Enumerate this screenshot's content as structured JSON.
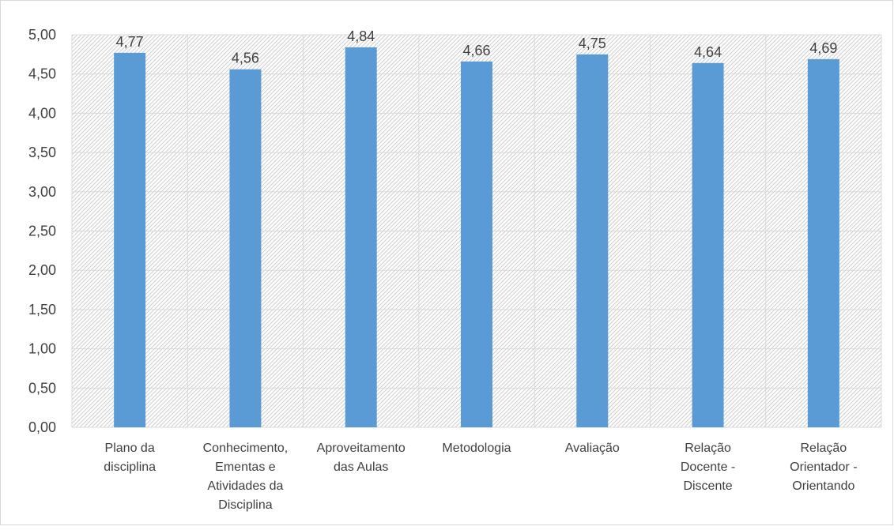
{
  "chart_data": {
    "type": "bar",
    "categories": [
      [
        "Plano da",
        "disciplina"
      ],
      [
        "Conhecimento,",
        "Ementas e",
        "Atividades da",
        "Disciplina"
      ],
      [
        "Aproveitamento",
        "das Aulas"
      ],
      [
        "Metodologia"
      ],
      [
        "Avaliação"
      ],
      [
        "Relação",
        "Docente -",
        "Discente"
      ],
      [
        "Relação",
        "Orientador -",
        "Orientando"
      ]
    ],
    "values": [
      4.77,
      4.56,
      4.84,
      4.66,
      4.75,
      4.64,
      4.69
    ],
    "data_labels": [
      "4,77",
      "4,56",
      "4,84",
      "4,66",
      "4,75",
      "4,64",
      "4,69"
    ],
    "yticks": [
      "0,00",
      "0,50",
      "1,00",
      "1,50",
      "2,00",
      "2,50",
      "3,00",
      "3,50",
      "4,00",
      "4,50",
      "5,00"
    ],
    "ylim": [
      0,
      5
    ],
    "ytick_step": 0.5,
    "grid": true,
    "plot_background": "diagonal hatch",
    "bar_color": "#5b9bd5",
    "grid_color": "#d9d9d9",
    "text_color": "#404040"
  }
}
